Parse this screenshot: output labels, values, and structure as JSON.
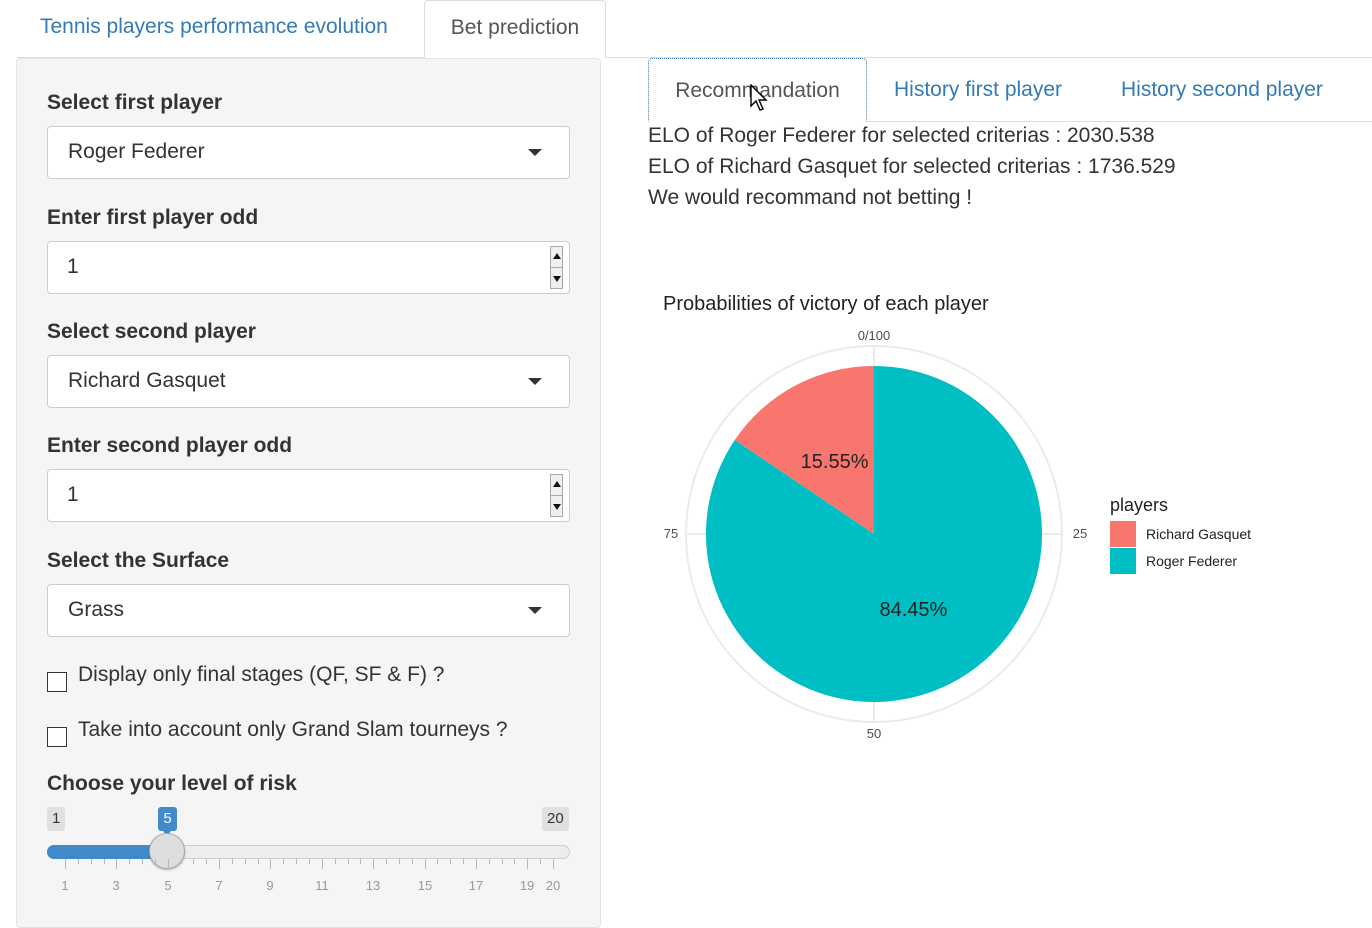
{
  "top_tabs": [
    "Tennis players performance evolution",
    "Bet prediction"
  ],
  "sidebar": {
    "first_player_label": "Select first player",
    "first_player_value": "Roger Federer",
    "first_odd_label": "Enter first player odd",
    "first_odd_value": "1",
    "second_player_label": "Select second player",
    "second_player_value": "Richard Gasquet",
    "second_odd_label": "Enter second player odd",
    "second_odd_value": "1",
    "surface_label": "Select the Surface",
    "surface_value": "Grass",
    "final_stages_label": "Display only final stages (QF, SF & F) ?",
    "grand_slam_label": "Take into account only Grand Slam tourneys ?",
    "risk_label": "Choose your level of risk",
    "risk_min": "1",
    "risk_max": "20",
    "risk_value": "5",
    "risk_ticks": [
      "1",
      "3",
      "5",
      "7",
      "9",
      "11",
      "13",
      "15",
      "17",
      "19",
      "20"
    ]
  },
  "sub_tabs": [
    "Recommandation",
    "History first player",
    "History second player"
  ],
  "output": {
    "line1": "ELO of Roger Federer for selected criterias : 2030.538",
    "line2": "ELO of Richard Gasquet for selected criterias : 1736.529",
    "line3": "We would recommand not betting !"
  },
  "chart_data": {
    "type": "pie",
    "title": "Probabilities of victory of each player",
    "legend_title": "players",
    "legend_position": "right",
    "angle_ticks": [
      "0/100",
      "25",
      "50",
      "75"
    ],
    "slices": [
      {
        "name": "Richard Gasquet",
        "value": 15.55,
        "label": "15.55%",
        "color": "#F8766D"
      },
      {
        "name": "Roger Federer",
        "value": 84.45,
        "label": "84.45%",
        "color": "#00BFC4"
      }
    ]
  },
  "colors": {
    "accent": "#337ab7",
    "slider": "#428bca"
  }
}
